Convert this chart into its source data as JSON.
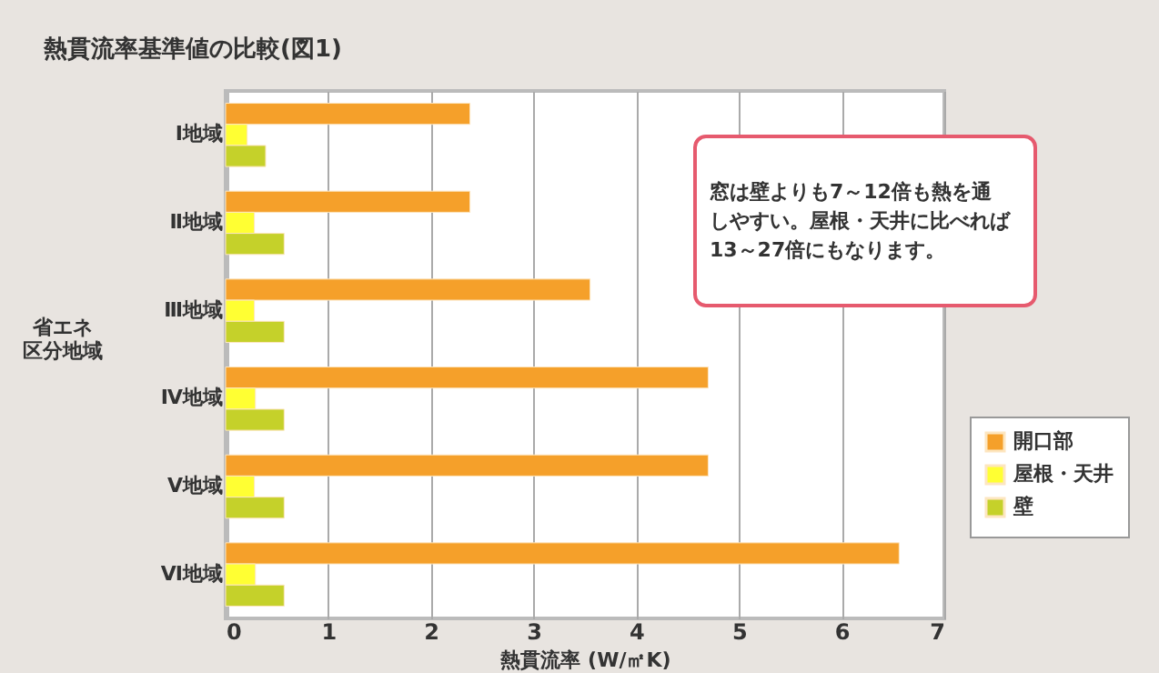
{
  "chart_data": {
    "type": "bar",
    "orientation": "horizontal",
    "title": "熱貫流率基準値の比較(図1)",
    "xlabel": "熱貫流率 (W/㎡K)",
    "ylabel": "省エネ区分地域",
    "categories": [
      "Ⅰ地域",
      "Ⅱ地域",
      "Ⅲ地域",
      "Ⅳ地域",
      "Ⅴ地域",
      "Ⅵ地域"
    ],
    "series": [
      {
        "name": "開口部",
        "color": "#f5a02a",
        "values": [
          2.38,
          2.38,
          3.55,
          4.7,
          4.7,
          6.56
        ]
      },
      {
        "name": "屋根・天井",
        "color": "#ffff33",
        "values": [
          0.21,
          0.28,
          0.28,
          0.29,
          0.28,
          0.29
        ]
      },
      {
        "name": "壁",
        "color": "#c5d12a",
        "values": [
          0.39,
          0.57,
          0.57,
          0.57,
          0.57,
          0.57
        ]
      }
    ],
    "xlim": [
      0,
      7
    ],
    "xticks": [
      0,
      1,
      2,
      3,
      4,
      5,
      6,
      7
    ],
    "grid": "x",
    "legend": "right",
    "annotations": [
      "窓は壁よりも7～12倍も熱を通しやすい。屋根・天井に比べれば13～27倍にもなります。"
    ]
  }
}
